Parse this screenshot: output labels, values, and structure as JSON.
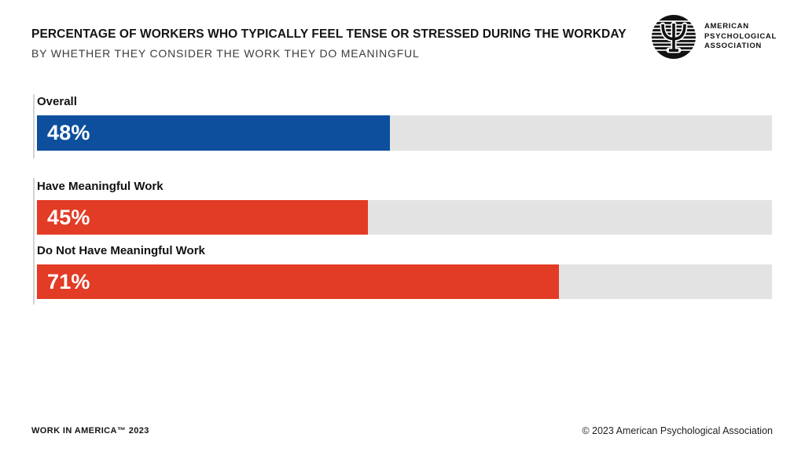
{
  "header": {
    "title": "PERCENTAGE OF WORKERS WHO TYPICALLY FEEL TENSE OR STRESSED DURING THE WORKDAY",
    "subtitle": "BY WHETHER THEY CONSIDER THE WORK THEY DO MEANINGFUL"
  },
  "logo": {
    "line1": "AMERICAN",
    "line2": "PSYCHOLOGICAL",
    "line3": "ASSOCIATION"
  },
  "chart_data": {
    "type": "bar",
    "orientation": "horizontal",
    "title": "Percentage of workers who typically feel tense or stressed during the workday",
    "subtitle": "By whether they consider the work they do meaningful",
    "categories": [
      "Overall",
      "Have Meaningful Work",
      "Do Not Have Meaningful Work"
    ],
    "values": [
      48,
      45,
      71
    ],
    "xlim": [
      0,
      100
    ],
    "grid": false,
    "legend": false,
    "rows": [
      {
        "label": "Overall",
        "value": 48,
        "value_label": "48%",
        "color": "#0d4f9c"
      },
      {
        "label": "Have Meaningful Work",
        "value": 45,
        "value_label": "45%",
        "color": "#e23b26"
      },
      {
        "label": "Do Not Have Meaningful Work",
        "value": 71,
        "value_label": "71%",
        "color": "#e23b26"
      }
    ],
    "track_color": "#e3e3e3",
    "bar_colors": {
      "overall": "#0d4f9c",
      "meaningful": "#e23b26"
    }
  },
  "footer": {
    "left": "WORK IN AMERICA™ 2023",
    "right": "© 2023 American Psychological Association"
  }
}
